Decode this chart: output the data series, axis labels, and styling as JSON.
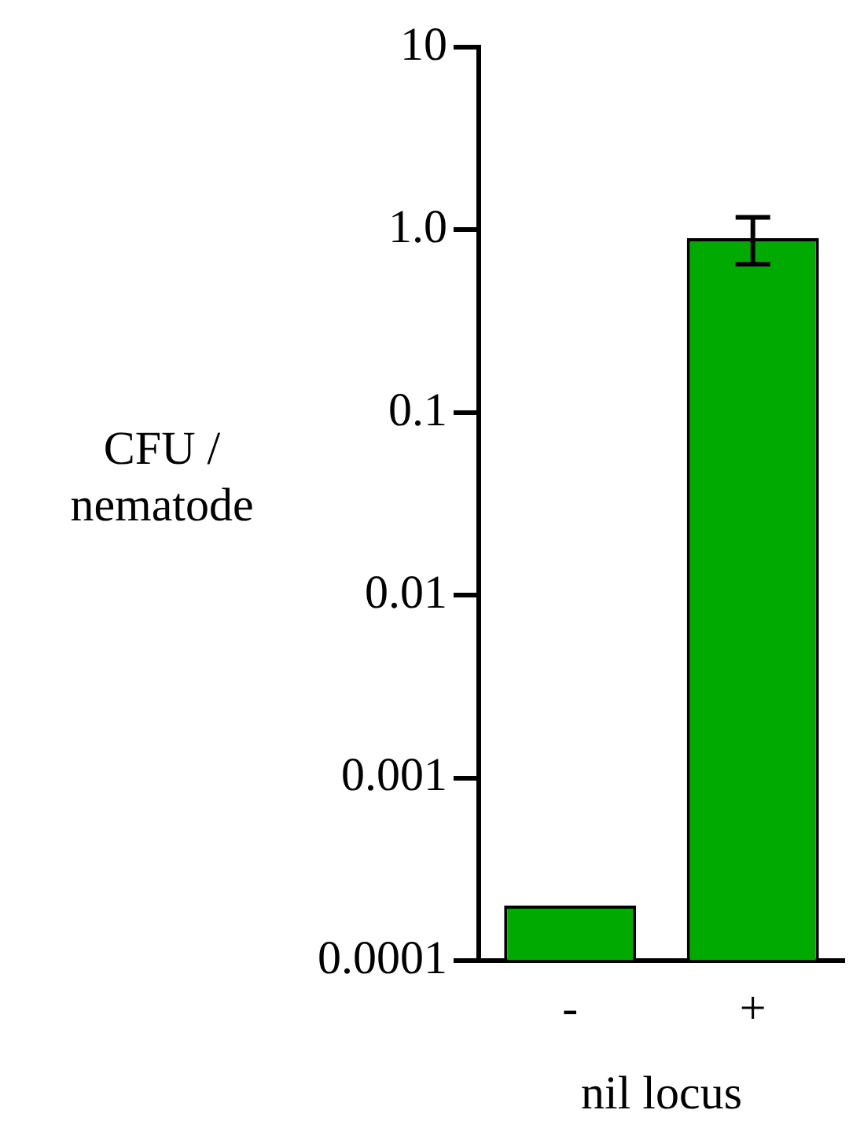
{
  "chart_data": {
    "type": "bar",
    "ylabel": "CFU / nematode",
    "xlabel": "nil locus",
    "categories": [
      "-",
      "+"
    ],
    "values": [
      0.0002,
      0.9
    ],
    "errors": [
      null,
      [
        0.65,
        1.17
      ]
    ],
    "color": "#00aa00",
    "log": true,
    "ylim": [
      0.0001,
      10
    ],
    "yticks": [
      {
        "value": 0.0001,
        "label": "0.0001"
      },
      {
        "value": 0.001,
        "label": "0.001"
      },
      {
        "value": 0.01,
        "label": "0.01"
      },
      {
        "value": 0.1,
        "label": "0.1"
      },
      {
        "value": 1,
        "label": "1.0"
      },
      {
        "value": 10,
        "label": "10"
      }
    ],
    "grid": false,
    "legend": false
  }
}
